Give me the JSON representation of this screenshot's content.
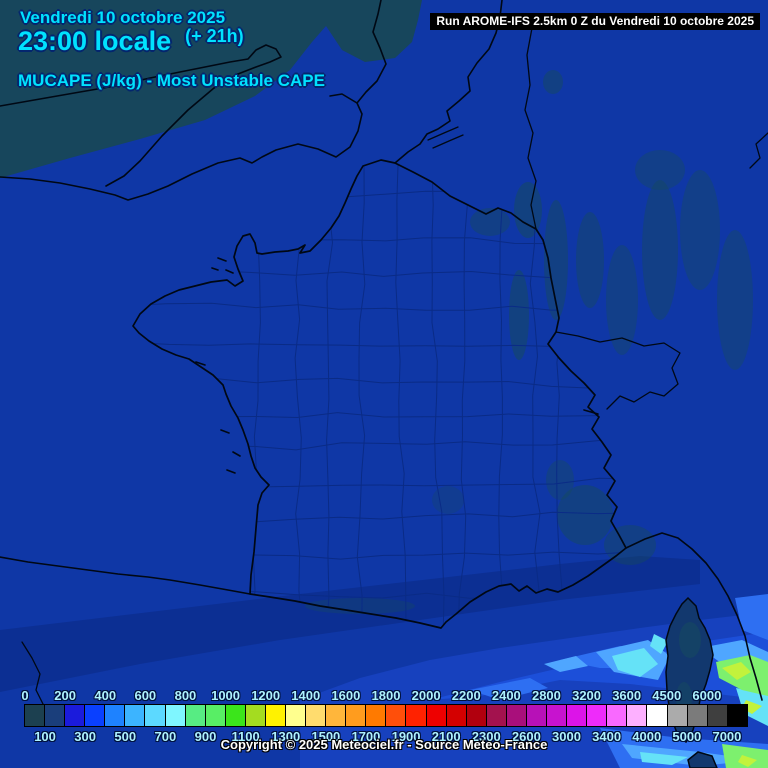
{
  "header": {
    "date": "Vendredi 10 octobre 2025",
    "time": "23:00 locale",
    "offset": "(+ 21h)",
    "parameter": "MUCAPE (J/kg) - Most Unstable CAPE",
    "run": "Run AROME-IFS 2.5km 0 Z du Vendredi 10 octobre 2025"
  },
  "footer": {
    "copyright": "Copyright © 2025 Meteociel.fr - Source Meteo-France"
  },
  "legend": {
    "top_labels": [
      "0",
      "200",
      "400",
      "600",
      "800",
      "1000",
      "1200",
      "1400",
      "1600",
      "1800",
      "2000",
      "2200",
      "2400",
      "2800",
      "3200",
      "3600",
      "4500",
      "6000"
    ],
    "bottom_labels": [
      "100",
      "300",
      "500",
      "700",
      "900",
      "1100",
      "1300",
      "1500",
      "1700",
      "1900",
      "2100",
      "2300",
      "2600",
      "3000",
      "3400",
      "4000",
      "5000",
      "7000"
    ],
    "colors": [
      "#1C4050",
      "#1A3E7B",
      "#1B1BDC",
      "#0A40FF",
      "#1E82FF",
      "#3CB4FF",
      "#5CD9FF",
      "#7FF6FF",
      "#57EC83",
      "#58EE65",
      "#3BE51B",
      "#A4DC20",
      "#FFF200",
      "#FFFF8E",
      "#FFDC6E",
      "#FFB63B",
      "#FF9C1E",
      "#FF7A00",
      "#FF4F0A",
      "#FF2200",
      "#EE0000",
      "#D40000",
      "#B1000E",
      "#A3124E",
      "#A90F7B",
      "#B711B7",
      "#C713CF",
      "#DC14E8",
      "#EE2BFA",
      "#F969FF",
      "#FDB0FF",
      "#FFFFFF",
      "#ABABAB",
      "#7B7B7B",
      "#3F3F3F",
      "#000000"
    ],
    "label_color": "#AEF2FF"
  },
  "theme": {
    "header_text": "#00E2FF",
    "map_background": "#0F37A6",
    "department_border": "#0A2B86",
    "coastline": "#000814",
    "out_of_domain": "#17465C",
    "terrain_shade": "#164A60",
    "shadow_band": "#0C2F93",
    "cape_wash": "#1741BE",
    "cape_blue": "#2E6FF2",
    "cape_lightblue": "#4FA6FF",
    "cape_cyan": "#65E2F7",
    "cape_green": "#7DF06E",
    "cape_yellowgreen": "#C2F23C"
  }
}
